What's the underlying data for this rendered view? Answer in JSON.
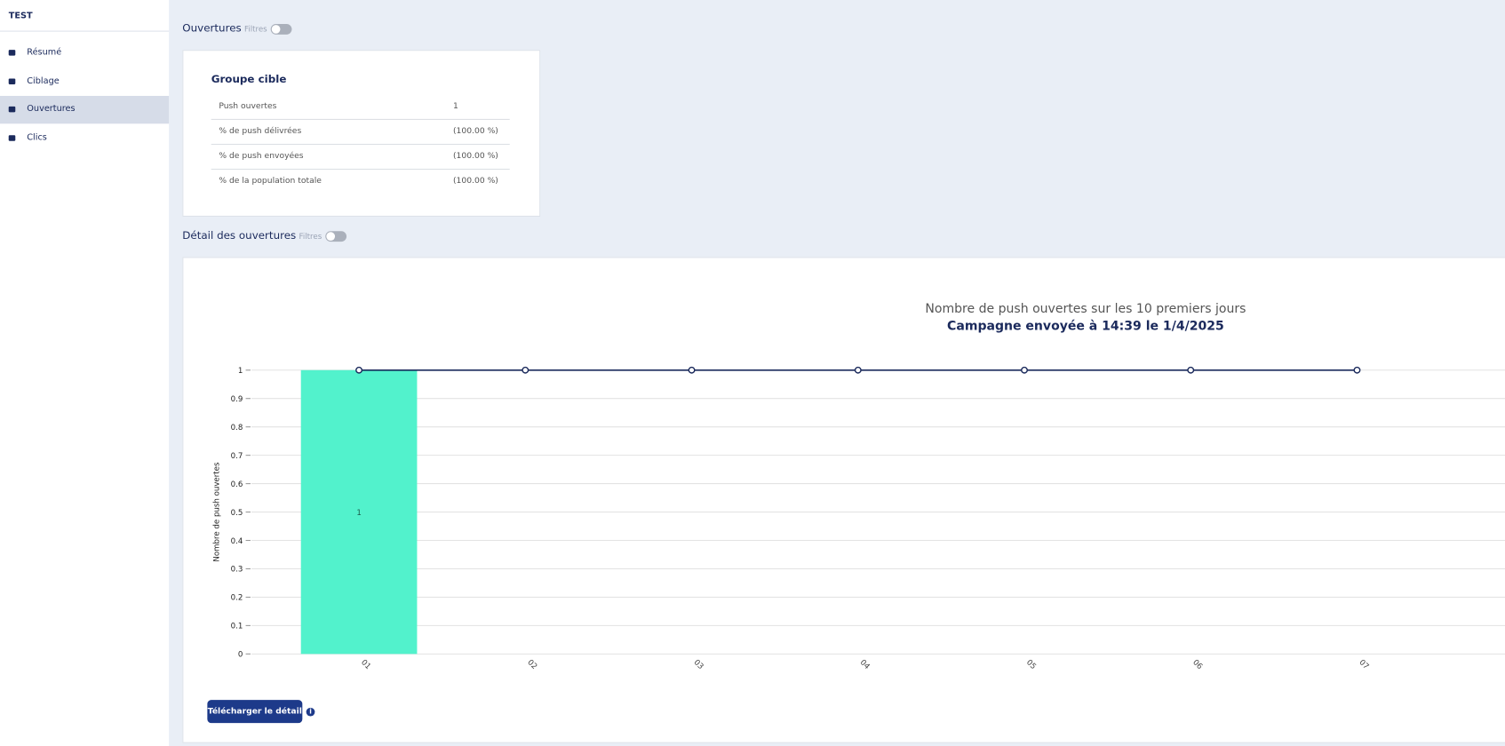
{
  "sidebar": {
    "title": "TEST",
    "items": [
      "Résumé",
      "Ciblage",
      "Ouvertures",
      "Clics"
    ],
    "active": 2
  },
  "section1": {
    "title": "Ouvertures",
    "filter": "Filtres"
  },
  "table": {
    "title": "Groupe cible",
    "rows": [
      [
        "Push ouvertes",
        "1"
      ],
      [
        "% de push délivrées",
        "(100.00 %)"
      ],
      [
        "% de push envoyées",
        "(100.00 %)"
      ],
      [
        "% de la population totale",
        "(100.00 %)"
      ]
    ]
  },
  "section2": {
    "title": "Détail des ouvertures",
    "filter": "Filtres"
  },
  "chart_data": {
    "type": "bar_line",
    "title": "Nombre de push ouvertes sur les 10 premiers jours",
    "subtitle": "Campagne envoyée à 14:39 le 1/4/2025",
    "y_label": "Nombre de push ouvertes",
    "categories": [
      "01",
      "02",
      "03",
      "04",
      "05",
      "06",
      "07"
    ],
    "series": [
      {
        "type": "bar",
        "color": "#52f2cc",
        "values": [
          1,
          0,
          0,
          0,
          0,
          0,
          0
        ]
      },
      {
        "type": "line",
        "color": "#1b2a5c",
        "values": [
          1,
          1,
          1,
          1,
          1,
          1,
          1
        ]
      }
    ],
    "ylim": [
      0,
      1
    ],
    "yticks": [
      0,
      0.1,
      0.2,
      0.3,
      0.4,
      0.5,
      0.6,
      0.7,
      0.8,
      0.9,
      1
    ],
    "grid": true
  },
  "button": "Télécharger le détail"
}
